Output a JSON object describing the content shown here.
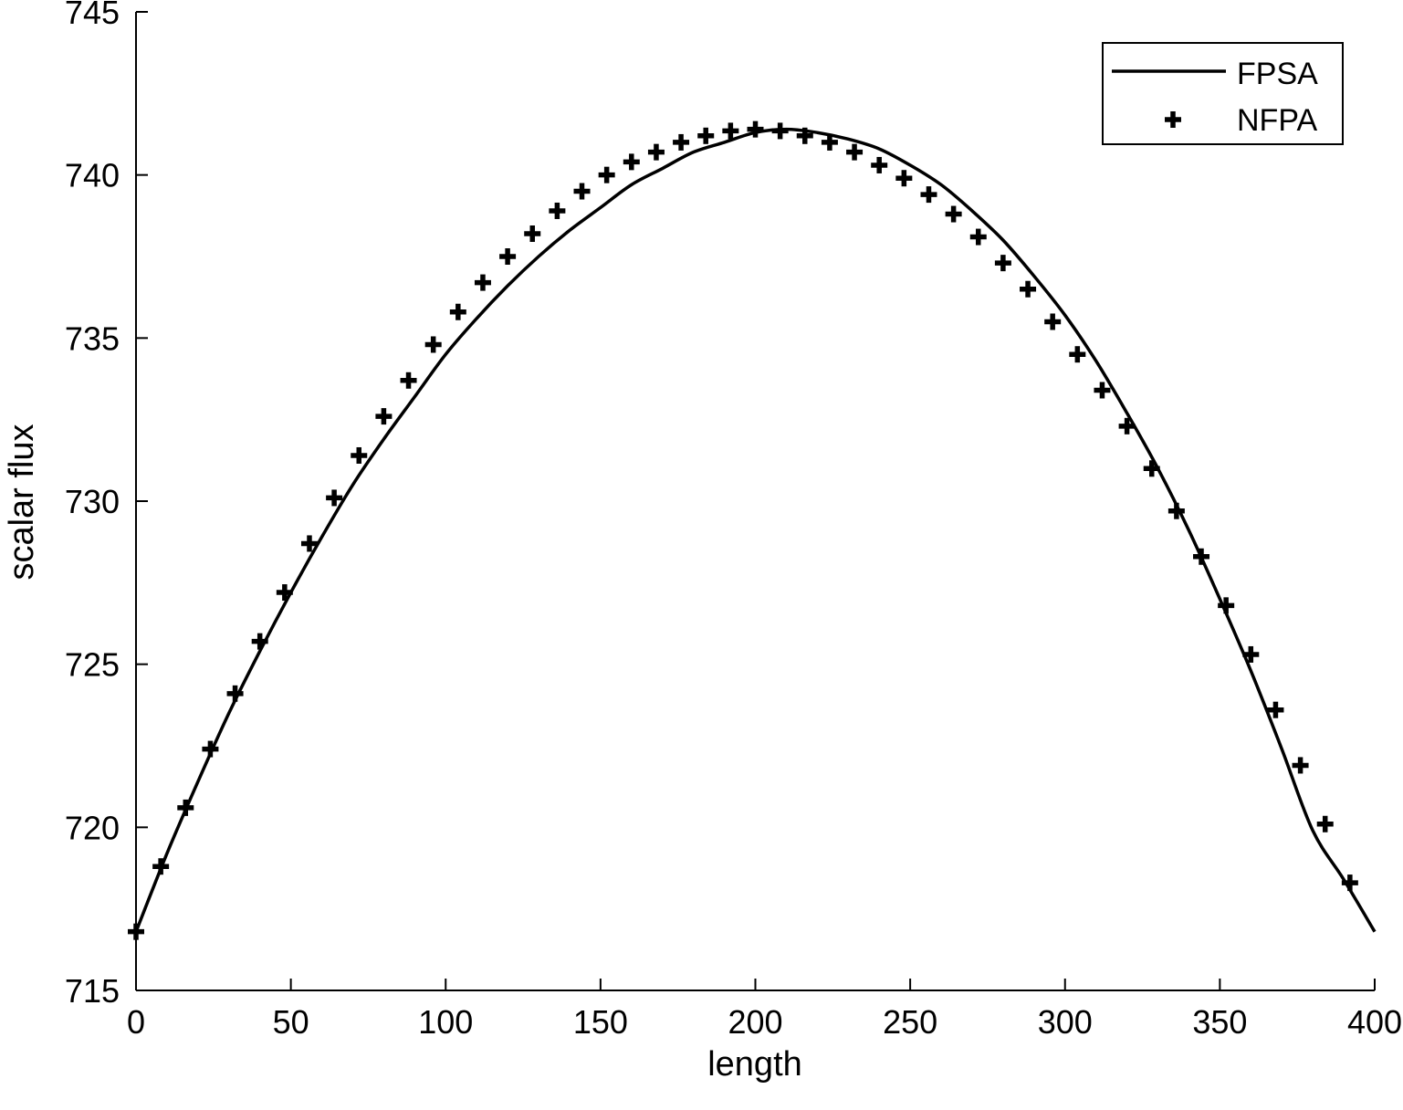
{
  "chart_data": {
    "type": "line",
    "title": "",
    "xlabel": "length",
    "ylabel": "scalar flux",
    "xlim": [
      0,
      400
    ],
    "ylim": [
      715,
      745
    ],
    "xticks": [
      0,
      50,
      100,
      150,
      200,
      250,
      300,
      350,
      400
    ],
    "yticks": [
      715,
      720,
      725,
      730,
      735,
      740,
      745
    ],
    "grid": false,
    "legend_position": "top-right",
    "colors": {
      "line": "#000000",
      "marker": "#000000"
    },
    "series": [
      {
        "name": "FPSA",
        "style": "solid-line",
        "x": [
          0,
          10,
          20,
          30,
          40,
          50,
          60,
          70,
          80,
          90,
          100,
          110,
          120,
          130,
          140,
          150,
          160,
          170,
          180,
          190,
          200,
          210,
          220,
          230,
          240,
          250,
          260,
          270,
          280,
          290,
          300,
          310,
          320,
          330,
          340,
          350,
          360,
          370,
          380,
          390,
          400
        ],
        "values": [
          716.8,
          719.2,
          721.4,
          723.5,
          725.4,
          727.2,
          728.9,
          730.5,
          731.9,
          733.2,
          734.5,
          735.6,
          736.6,
          737.5,
          738.3,
          739.0,
          739.7,
          740.2,
          740.7,
          741.0,
          741.3,
          741.4,
          741.3,
          741.1,
          740.8,
          740.3,
          739.7,
          738.9,
          738.0,
          736.9,
          735.7,
          734.3,
          732.7,
          731.0,
          729.1,
          727.0,
          724.8,
          722.4,
          719.9,
          718.4,
          716.8
        ]
      },
      {
        "name": "NFPA",
        "style": "plus-markers",
        "x": [
          0,
          8,
          16,
          24,
          32,
          40,
          48,
          56,
          64,
          72,
          80,
          88,
          96,
          104,
          112,
          120,
          128,
          136,
          144,
          152,
          160,
          168,
          176,
          184,
          192,
          200,
          208,
          216,
          224,
          232,
          240,
          248,
          256,
          264,
          272,
          280,
          288,
          296,
          304,
          312,
          320,
          328,
          336,
          344,
          352,
          360,
          368,
          376,
          384,
          392
        ],
        "values": [
          716.8,
          718.8,
          720.6,
          722.4,
          724.1,
          725.7,
          727.2,
          728.7,
          730.1,
          731.4,
          732.6,
          733.7,
          734.8,
          735.8,
          736.7,
          737.5,
          738.2,
          738.9,
          739.5,
          740.0,
          740.4,
          740.7,
          741.0,
          741.2,
          741.35,
          741.4,
          741.35,
          741.2,
          741.0,
          740.7,
          740.3,
          739.9,
          739.4,
          738.8,
          738.1,
          737.3,
          736.5,
          735.5,
          734.5,
          733.4,
          732.3,
          731.0,
          729.7,
          728.3,
          726.8,
          725.3,
          723.6,
          721.9,
          720.1,
          718.3
        ]
      }
    ]
  }
}
